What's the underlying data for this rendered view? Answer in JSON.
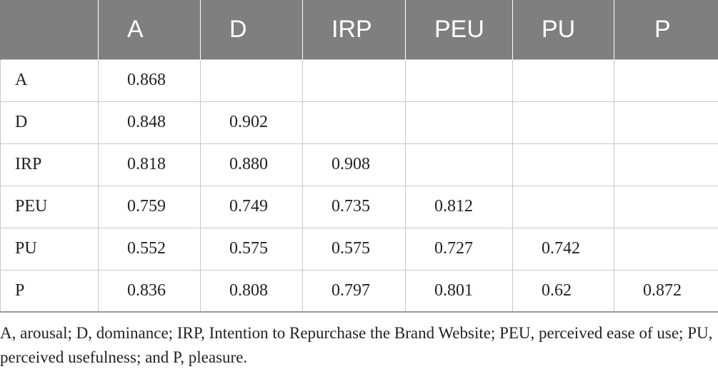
{
  "table": {
    "header": [
      "",
      "A",
      "D",
      "IRP",
      "PEU",
      "PU",
      "P"
    ],
    "rows": [
      {
        "label": "A",
        "cells": [
          "0.868",
          "",
          "",
          "",
          "",
          ""
        ]
      },
      {
        "label": "D",
        "cells": [
          "0.848",
          "0.902",
          "",
          "",
          "",
          ""
        ]
      },
      {
        "label": "IRP",
        "cells": [
          "0.818",
          "0.880",
          "0.908",
          "",
          "",
          ""
        ]
      },
      {
        "label": "PEU",
        "cells": [
          "0.759",
          "0.749",
          "0.735",
          "0.812",
          "",
          ""
        ]
      },
      {
        "label": "PU",
        "cells": [
          "0.552",
          "0.575",
          "0.575",
          "0.727",
          "0.742",
          ""
        ]
      },
      {
        "label": "P",
        "cells": [
          "0.836",
          "0.808",
          "0.797",
          "0.801",
          "0.62",
          "0.872"
        ]
      }
    ]
  },
  "footnote": "A, arousal; D, dominance; IRP, Intention to Repurchase the Brand Website; PEU, perceived ease of use; PU, perceived usefulness; and P, pleasure.",
  "colors": {
    "header_bg": "#7f7f7f",
    "header_text": "#ffffff",
    "grid_line": "#c8c8c8"
  }
}
